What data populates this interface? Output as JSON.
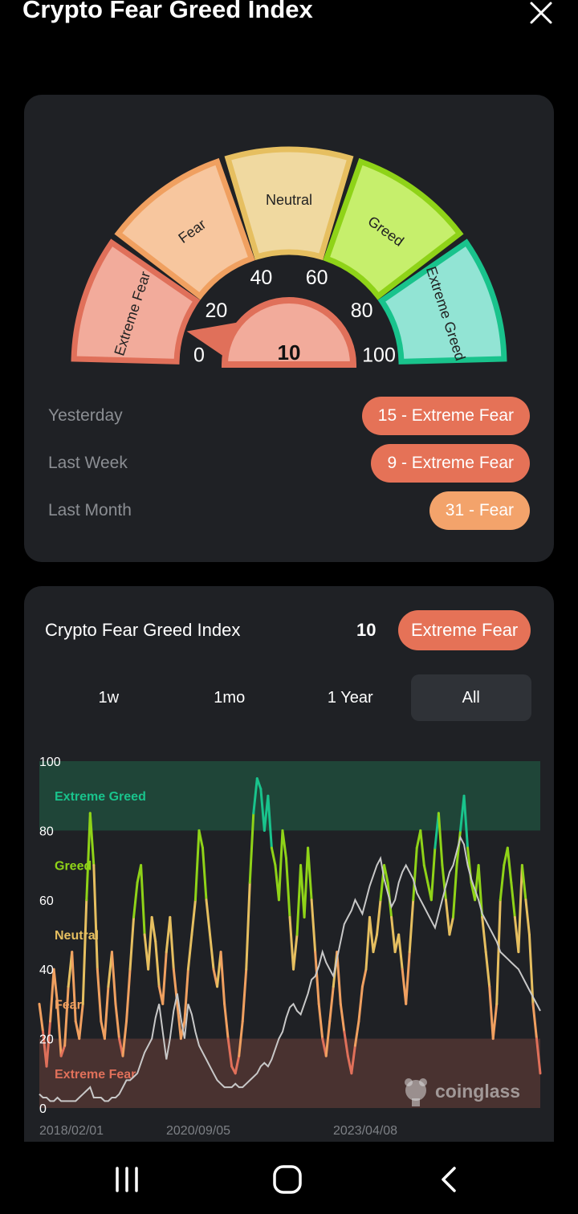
{
  "header": {
    "title": "Crypto Fear Greed Index"
  },
  "gauge": {
    "value": "10",
    "value_num": 10,
    "segments": [
      {
        "label": "Extreme Fear",
        "color": "#f2ab9b",
        "border": "#e0705a"
      },
      {
        "label": "Fear",
        "color": "#f7c69e",
        "border": "#f0a060"
      },
      {
        "label": "Neutral",
        "color": "#f0d9a0",
        "border": "#e6bf60"
      },
      {
        "label": "Greed",
        "color": "#c6ef6c",
        "border": "#8fd318"
      },
      {
        "label": "Extreme Greed",
        "color": "#92e4d4",
        "border": "#19c38c"
      }
    ],
    "ticks": [
      "0",
      "20",
      "40",
      "60",
      "80",
      "100"
    ]
  },
  "history": {
    "yesterday": {
      "label": "Yesterday",
      "value": "15 - Extreme Fear"
    },
    "last_week": {
      "label": "Last Week",
      "value": "9 - Extreme Fear"
    },
    "last_month": {
      "label": "Last Month",
      "value": "31 - Fear"
    }
  },
  "chart_card": {
    "title": "Crypto Fear Greed Index",
    "value": "10",
    "badge": "Extreme Fear",
    "tabs": [
      "1w",
      "1mo",
      "1 Year",
      "All"
    ],
    "active_tab": "All",
    "watermark": "coinglass"
  },
  "chart_data": {
    "type": "line",
    "y_ticks": [
      "100",
      "80",
      "60",
      "40",
      "20",
      "0"
    ],
    "x_ticks": [
      "2018/02/01",
      "2020/09/05",
      "2023/04/08"
    ],
    "ylim": [
      0,
      100
    ],
    "zones": [
      {
        "label": "Extreme Greed",
        "from": 80,
        "to": 100,
        "color": "#1f8a5c",
        "text_color": "#19c38c"
      },
      {
        "label": "Greed",
        "from": 60,
        "to": 80,
        "color": "#8fd318",
        "text_color": "#8fd318"
      },
      {
        "label": "Neutral",
        "from": 40,
        "to": 60,
        "color": "#e6bf60",
        "text_color": "#e6bf60"
      },
      {
        "label": "Fear",
        "from": 20,
        "to": 40,
        "color": "#f0a060",
        "text_color": "#f0a060"
      },
      {
        "label": "Extreme Fear",
        "from": 0,
        "to": 20,
        "color": "#e0705a",
        "text_color": "#e0705a"
      }
    ],
    "series": [
      {
        "values": [
          30,
          22,
          12,
          25,
          40,
          30,
          15,
          18,
          35,
          45,
          25,
          20,
          30,
          60,
          85,
          70,
          40,
          25,
          20,
          35,
          45,
          30,
          20,
          15,
          25,
          40,
          55,
          65,
          70,
          50,
          40,
          55,
          48,
          35,
          30,
          45,
          55,
          40,
          30,
          20,
          25,
          40,
          50,
          60,
          80,
          75,
          60,
          50,
          40,
          35,
          45,
          30,
          20,
          12,
          10,
          15,
          25,
          40,
          65,
          85,
          95,
          92,
          80,
          90,
          75,
          70,
          60,
          80,
          72,
          55,
          40,
          50,
          70,
          55,
          75,
          60,
          45,
          30,
          20,
          15,
          25,
          35,
          45,
          30,
          22,
          15,
          10,
          18,
          25,
          35,
          40,
          55,
          45,
          50,
          60,
          70,
          65,
          55,
          45,
          50,
          40,
          30,
          45,
          60,
          75,
          80,
          70,
          65,
          60,
          75,
          85,
          70,
          60,
          50,
          55,
          70,
          80,
          90,
          75,
          65,
          60,
          70,
          55,
          45,
          35,
          20,
          30,
          60,
          70,
          75,
          65,
          55,
          45,
          70,
          60,
          50,
          30,
          20,
          10
        ]
      },
      {
        "values": [
          4,
          3,
          3,
          2,
          2,
          3,
          2,
          2,
          2,
          2,
          2,
          3,
          4,
          5,
          6,
          3,
          3,
          3,
          2,
          2,
          3,
          3,
          4,
          6,
          8,
          8,
          9,
          10,
          13,
          16,
          18,
          20,
          26,
          30,
          22,
          14,
          20,
          28,
          33,
          26,
          20,
          30,
          27,
          22,
          18,
          16,
          14,
          12,
          10,
          8,
          7,
          6,
          6,
          6,
          7,
          6,
          6,
          7,
          8,
          9,
          10,
          12,
          13,
          12,
          14,
          17,
          20,
          22,
          26,
          29,
          30,
          28,
          27,
          30,
          33,
          37,
          38,
          41,
          45,
          42,
          40,
          38,
          43,
          48,
          53,
          55,
          57,
          60,
          58,
          56,
          60,
          64,
          67,
          70,
          72,
          66,
          62,
          58,
          60,
          65,
          68,
          70,
          68,
          66,
          62,
          60,
          58,
          56,
          54,
          52,
          56,
          60,
          64,
          68,
          70,
          74,
          78,
          76,
          70,
          66,
          63,
          60,
          56,
          54,
          52,
          50,
          48,
          45,
          44,
          43,
          42,
          41,
          40,
          38,
          36,
          34,
          32,
          30,
          28
        ]
      }
    ]
  },
  "navbar": {
    "recents": "recents",
    "home": "home",
    "back": "back"
  }
}
